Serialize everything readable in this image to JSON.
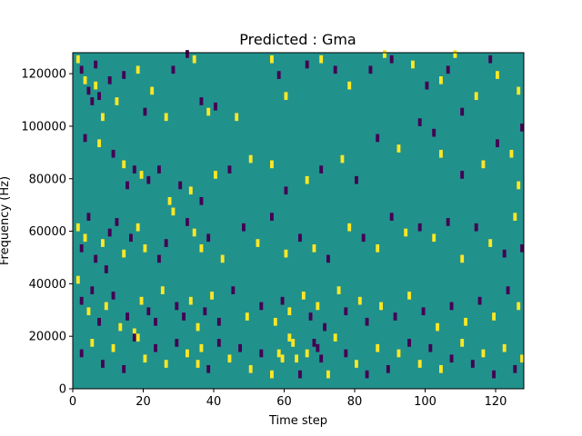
{
  "chart_data": {
    "type": "heatmap",
    "title": "Predicted : Gma",
    "xlabel": "Time step",
    "ylabel": "Frequency (Hz)",
    "xlim": [
      0,
      128
    ],
    "ylim": [
      0,
      128000
    ],
    "xticks": [
      0,
      20,
      40,
      60,
      80,
      100,
      120
    ],
    "yticks": [
      0,
      20000,
      40000,
      60000,
      80000,
      100000,
      120000
    ],
    "colors": {
      "background": "#21918c",
      "low": "#440154",
      "high": "#fde725"
    },
    "cell_height": 1000,
    "cells": [
      {
        "t": 1,
        "f": 124000,
        "v": 1
      },
      {
        "t": 2,
        "f": 120000,
        "v": 0
      },
      {
        "t": 3,
        "f": 116000,
        "v": 1
      },
      {
        "t": 4,
        "f": 112000,
        "v": 0
      },
      {
        "t": 5,
        "f": 108000,
        "v": 0
      },
      {
        "t": 6,
        "f": 122000,
        "v": 0
      },
      {
        "t": 6,
        "f": 114000,
        "v": 1
      },
      {
        "t": 7,
        "f": 110000,
        "v": 0
      },
      {
        "t": 8,
        "f": 102000,
        "v": 1
      },
      {
        "t": 10,
        "f": 116000,
        "v": 0
      },
      {
        "t": 12,
        "f": 108000,
        "v": 1
      },
      {
        "t": 14,
        "f": 118000,
        "v": 0
      },
      {
        "t": 18,
        "f": 120000,
        "v": 1
      },
      {
        "t": 20,
        "f": 104000,
        "v": 0
      },
      {
        "t": 22,
        "f": 112000,
        "v": 1
      },
      {
        "t": 26,
        "f": 102000,
        "v": 1
      },
      {
        "t": 28,
        "f": 120000,
        "v": 0
      },
      {
        "t": 32,
        "f": 126000,
        "v": 0
      },
      {
        "t": 34,
        "f": 124000,
        "v": 1
      },
      {
        "t": 36,
        "f": 108000,
        "v": 0
      },
      {
        "t": 38,
        "f": 104000,
        "v": 1
      },
      {
        "t": 40,
        "f": 106000,
        "v": 0
      },
      {
        "t": 46,
        "f": 102000,
        "v": 1
      },
      {
        "t": 56,
        "f": 124000,
        "v": 1
      },
      {
        "t": 58,
        "f": 118000,
        "v": 0
      },
      {
        "t": 60,
        "f": 110000,
        "v": 1
      },
      {
        "t": 66,
        "f": 122000,
        "v": 0
      },
      {
        "t": 70,
        "f": 124000,
        "v": 1
      },
      {
        "t": 74,
        "f": 120000,
        "v": 0
      },
      {
        "t": 78,
        "f": 114000,
        "v": 1
      },
      {
        "t": 84,
        "f": 120000,
        "v": 0
      },
      {
        "t": 88,
        "f": 126000,
        "v": 1
      },
      {
        "t": 90,
        "f": 124000,
        "v": 0
      },
      {
        "t": 96,
        "f": 122000,
        "v": 1
      },
      {
        "t": 100,
        "f": 114000,
        "v": 0
      },
      {
        "t": 104,
        "f": 116000,
        "v": 1
      },
      {
        "t": 106,
        "f": 120000,
        "v": 0
      },
      {
        "t": 108,
        "f": 126000,
        "v": 1
      },
      {
        "t": 110,
        "f": 104000,
        "v": 0
      },
      {
        "t": 114,
        "f": 110000,
        "v": 1
      },
      {
        "t": 118,
        "f": 124000,
        "v": 0
      },
      {
        "t": 120,
        "f": 118000,
        "v": 1
      },
      {
        "t": 126,
        "f": 112000,
        "v": 1
      },
      {
        "t": 127,
        "f": 98000,
        "v": 0
      },
      {
        "t": 3,
        "f": 94000,
        "v": 0
      },
      {
        "t": 7,
        "f": 92000,
        "v": 1
      },
      {
        "t": 11,
        "f": 88000,
        "v": 0
      },
      {
        "t": 14,
        "f": 84000,
        "v": 1
      },
      {
        "t": 15,
        "f": 76000,
        "v": 0
      },
      {
        "t": 17,
        "f": 82000,
        "v": 0
      },
      {
        "t": 19,
        "f": 80000,
        "v": 1
      },
      {
        "t": 21,
        "f": 78000,
        "v": 0
      },
      {
        "t": 24,
        "f": 82000,
        "v": 0
      },
      {
        "t": 27,
        "f": 70000,
        "v": 1
      },
      {
        "t": 30,
        "f": 76000,
        "v": 0
      },
      {
        "t": 33,
        "f": 74000,
        "v": 1
      },
      {
        "t": 36,
        "f": 70000,
        "v": 0
      },
      {
        "t": 40,
        "f": 80000,
        "v": 1
      },
      {
        "t": 44,
        "f": 82000,
        "v": 0
      },
      {
        "t": 50,
        "f": 86000,
        "v": 1
      },
      {
        "t": 56,
        "f": 84000,
        "v": 1
      },
      {
        "t": 60,
        "f": 74000,
        "v": 0
      },
      {
        "t": 66,
        "f": 78000,
        "v": 1
      },
      {
        "t": 70,
        "f": 82000,
        "v": 0
      },
      {
        "t": 76,
        "f": 86000,
        "v": 1
      },
      {
        "t": 80,
        "f": 78000,
        "v": 0
      },
      {
        "t": 86,
        "f": 94000,
        "v": 0
      },
      {
        "t": 92,
        "f": 90000,
        "v": 1
      },
      {
        "t": 98,
        "f": 100000,
        "v": 0
      },
      {
        "t": 102,
        "f": 96000,
        "v": 0
      },
      {
        "t": 104,
        "f": 88000,
        "v": 1
      },
      {
        "t": 110,
        "f": 80000,
        "v": 0
      },
      {
        "t": 116,
        "f": 84000,
        "v": 1
      },
      {
        "t": 120,
        "f": 92000,
        "v": 0
      },
      {
        "t": 124,
        "f": 88000,
        "v": 1
      },
      {
        "t": 126,
        "f": 76000,
        "v": 1
      },
      {
        "t": 1,
        "f": 60000,
        "v": 1
      },
      {
        "t": 2,
        "f": 52000,
        "v": 0
      },
      {
        "t": 3,
        "f": 56000,
        "v": 1
      },
      {
        "t": 4,
        "f": 64000,
        "v": 0
      },
      {
        "t": 6,
        "f": 48000,
        "v": 0
      },
      {
        "t": 8,
        "f": 54000,
        "v": 1
      },
      {
        "t": 9,
        "f": 44000,
        "v": 0
      },
      {
        "t": 10,
        "f": 58000,
        "v": 0
      },
      {
        "t": 12,
        "f": 62000,
        "v": 0
      },
      {
        "t": 14,
        "f": 50000,
        "v": 1
      },
      {
        "t": 16,
        "f": 56000,
        "v": 0
      },
      {
        "t": 18,
        "f": 60000,
        "v": 1
      },
      {
        "t": 20,
        "f": 52000,
        "v": 1
      },
      {
        "t": 24,
        "f": 48000,
        "v": 0
      },
      {
        "t": 26,
        "f": 54000,
        "v": 0
      },
      {
        "t": 28,
        "f": 66000,
        "v": 1
      },
      {
        "t": 32,
        "f": 62000,
        "v": 0
      },
      {
        "t": 34,
        "f": 58000,
        "v": 1
      },
      {
        "t": 36,
        "f": 52000,
        "v": 1
      },
      {
        "t": 38,
        "f": 56000,
        "v": 0
      },
      {
        "t": 42,
        "f": 48000,
        "v": 1
      },
      {
        "t": 48,
        "f": 60000,
        "v": 0
      },
      {
        "t": 52,
        "f": 54000,
        "v": 1
      },
      {
        "t": 56,
        "f": 64000,
        "v": 0
      },
      {
        "t": 60,
        "f": 50000,
        "v": 1
      },
      {
        "t": 64,
        "f": 56000,
        "v": 0
      },
      {
        "t": 68,
        "f": 52000,
        "v": 1
      },
      {
        "t": 72,
        "f": 48000,
        "v": 0
      },
      {
        "t": 78,
        "f": 60000,
        "v": 1
      },
      {
        "t": 82,
        "f": 56000,
        "v": 0
      },
      {
        "t": 86,
        "f": 52000,
        "v": 1
      },
      {
        "t": 90,
        "f": 64000,
        "v": 0
      },
      {
        "t": 94,
        "f": 58000,
        "v": 1
      },
      {
        "t": 98,
        "f": 60000,
        "v": 0
      },
      {
        "t": 102,
        "f": 56000,
        "v": 1
      },
      {
        "t": 106,
        "f": 62000,
        "v": 0
      },
      {
        "t": 110,
        "f": 48000,
        "v": 1
      },
      {
        "t": 114,
        "f": 60000,
        "v": 0
      },
      {
        "t": 118,
        "f": 54000,
        "v": 1
      },
      {
        "t": 122,
        "f": 50000,
        "v": 0
      },
      {
        "t": 125,
        "f": 64000,
        "v": 1
      },
      {
        "t": 127,
        "f": 52000,
        "v": 0
      },
      {
        "t": 1,
        "f": 40000,
        "v": 1
      },
      {
        "t": 2,
        "f": 32000,
        "v": 0
      },
      {
        "t": 4,
        "f": 28000,
        "v": 1
      },
      {
        "t": 5,
        "f": 36000,
        "v": 0
      },
      {
        "t": 7,
        "f": 24000,
        "v": 0
      },
      {
        "t": 9,
        "f": 30000,
        "v": 1
      },
      {
        "t": 11,
        "f": 34000,
        "v": 0
      },
      {
        "t": 13,
        "f": 22000,
        "v": 1
      },
      {
        "t": 15,
        "f": 26000,
        "v": 0
      },
      {
        "t": 17,
        "f": 20000,
        "v": 1
      },
      {
        "t": 19,
        "f": 32000,
        "v": 1
      },
      {
        "t": 21,
        "f": 28000,
        "v": 0
      },
      {
        "t": 23,
        "f": 24000,
        "v": 0
      },
      {
        "t": 25,
        "f": 36000,
        "v": 1
      },
      {
        "t": 29,
        "f": 30000,
        "v": 0
      },
      {
        "t": 31,
        "f": 26000,
        "v": 0
      },
      {
        "t": 33,
        "f": 32000,
        "v": 1
      },
      {
        "t": 35,
        "f": 22000,
        "v": 1
      },
      {
        "t": 37,
        "f": 28000,
        "v": 0
      },
      {
        "t": 39,
        "f": 34000,
        "v": 1
      },
      {
        "t": 41,
        "f": 24000,
        "v": 0
      },
      {
        "t": 45,
        "f": 36000,
        "v": 0
      },
      {
        "t": 49,
        "f": 26000,
        "v": 1
      },
      {
        "t": 53,
        "f": 30000,
        "v": 0
      },
      {
        "t": 57,
        "f": 24000,
        "v": 1
      },
      {
        "t": 59,
        "f": 32000,
        "v": 0
      },
      {
        "t": 61,
        "f": 28000,
        "v": 1
      },
      {
        "t": 65,
        "f": 34000,
        "v": 1
      },
      {
        "t": 67,
        "f": 26000,
        "v": 0
      },
      {
        "t": 69,
        "f": 30000,
        "v": 1
      },
      {
        "t": 71,
        "f": 22000,
        "v": 0
      },
      {
        "t": 75,
        "f": 36000,
        "v": 1
      },
      {
        "t": 77,
        "f": 28000,
        "v": 0
      },
      {
        "t": 81,
        "f": 32000,
        "v": 1
      },
      {
        "t": 83,
        "f": 24000,
        "v": 0
      },
      {
        "t": 87,
        "f": 30000,
        "v": 1
      },
      {
        "t": 91,
        "f": 26000,
        "v": 0
      },
      {
        "t": 95,
        "f": 34000,
        "v": 1
      },
      {
        "t": 99,
        "f": 28000,
        "v": 0
      },
      {
        "t": 103,
        "f": 22000,
        "v": 1
      },
      {
        "t": 107,
        "f": 30000,
        "v": 0
      },
      {
        "t": 111,
        "f": 24000,
        "v": 1
      },
      {
        "t": 115,
        "f": 32000,
        "v": 0
      },
      {
        "t": 119,
        "f": 26000,
        "v": 1
      },
      {
        "t": 123,
        "f": 36000,
        "v": 0
      },
      {
        "t": 126,
        "f": 30000,
        "v": 1
      },
      {
        "t": 2,
        "f": 12000,
        "v": 0
      },
      {
        "t": 5,
        "f": 16000,
        "v": 1
      },
      {
        "t": 8,
        "f": 8000,
        "v": 0
      },
      {
        "t": 11,
        "f": 14000,
        "v": 1
      },
      {
        "t": 14,
        "f": 6000,
        "v": 0
      },
      {
        "t": 17,
        "f": 18000,
        "v": 0
      },
      {
        "t": 18,
        "f": 18000,
        "v": 1
      },
      {
        "t": 20,
        "f": 10000,
        "v": 1
      },
      {
        "t": 23,
        "f": 14000,
        "v": 0
      },
      {
        "t": 26,
        "f": 8000,
        "v": 1
      },
      {
        "t": 29,
        "f": 16000,
        "v": 0
      },
      {
        "t": 32,
        "f": 12000,
        "v": 1
      },
      {
        "t": 35,
        "f": 8000,
        "v": 1
      },
      {
        "t": 36,
        "f": 14000,
        "v": 1
      },
      {
        "t": 38,
        "f": 6000,
        "v": 0
      },
      {
        "t": 41,
        "f": 16000,
        "v": 0
      },
      {
        "t": 44,
        "f": 10000,
        "v": 1
      },
      {
        "t": 47,
        "f": 14000,
        "v": 0
      },
      {
        "t": 50,
        "f": 6000,
        "v": 1
      },
      {
        "t": 53,
        "f": 12000,
        "v": 0
      },
      {
        "t": 56,
        "f": 4000,
        "v": 1
      },
      {
        "t": 58,
        "f": 12000,
        "v": 1
      },
      {
        "t": 59,
        "f": 10000,
        "v": 1
      },
      {
        "t": 61,
        "f": 18000,
        "v": 1
      },
      {
        "t": 62,
        "f": 16000,
        "v": 1
      },
      {
        "t": 63,
        "f": 10000,
        "v": 1
      },
      {
        "t": 64,
        "f": 4000,
        "v": 0
      },
      {
        "t": 66,
        "f": 12000,
        "v": 1
      },
      {
        "t": 68,
        "f": 16000,
        "v": 0
      },
      {
        "t": 69,
        "f": 14000,
        "v": 0
      },
      {
        "t": 70,
        "f": 10000,
        "v": 0
      },
      {
        "t": 72,
        "f": 4000,
        "v": 1
      },
      {
        "t": 74,
        "f": 18000,
        "v": 1
      },
      {
        "t": 77,
        "f": 12000,
        "v": 0
      },
      {
        "t": 80,
        "f": 8000,
        "v": 1
      },
      {
        "t": 83,
        "f": 4000,
        "v": 0
      },
      {
        "t": 86,
        "f": 14000,
        "v": 1
      },
      {
        "t": 89,
        "f": 6000,
        "v": 0
      },
      {
        "t": 92,
        "f": 12000,
        "v": 1
      },
      {
        "t": 95,
        "f": 16000,
        "v": 0
      },
      {
        "t": 98,
        "f": 8000,
        "v": 1
      },
      {
        "t": 101,
        "f": 14000,
        "v": 0
      },
      {
        "t": 104,
        "f": 6000,
        "v": 1
      },
      {
        "t": 107,
        "f": 10000,
        "v": 0
      },
      {
        "t": 110,
        "f": 16000,
        "v": 1
      },
      {
        "t": 113,
        "f": 8000,
        "v": 0
      },
      {
        "t": 116,
        "f": 12000,
        "v": 1
      },
      {
        "t": 119,
        "f": 4000,
        "v": 0
      },
      {
        "t": 122,
        "f": 14000,
        "v": 1
      },
      {
        "t": 125,
        "f": 6000,
        "v": 0
      },
      {
        "t": 127,
        "f": 10000,
        "v": 1
      }
    ]
  }
}
